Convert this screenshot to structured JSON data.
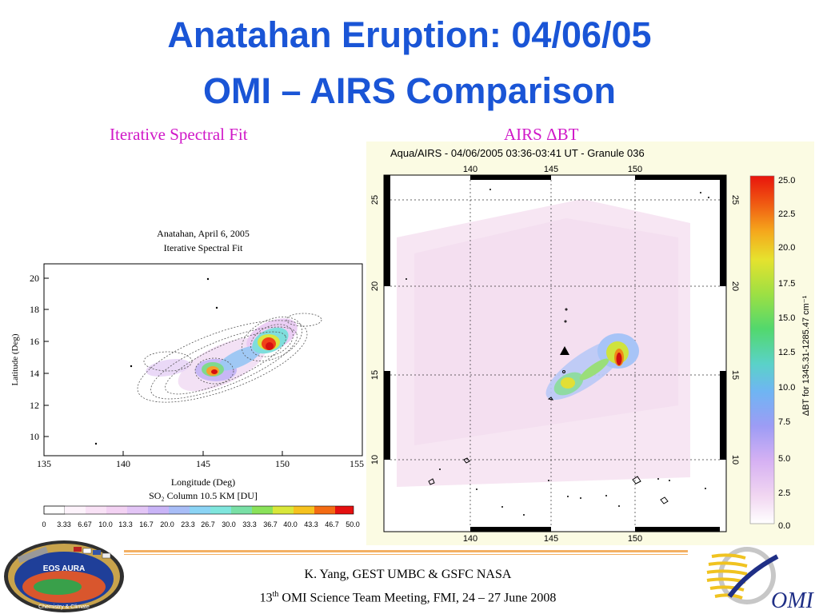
{
  "slide": {
    "title_line1": "Anatahan Eruption: 04/06/05",
    "title_line2": "OMI – AIRS Comparison",
    "left_subtitle": "Iterative Spectral Fit",
    "right_subtitle": "AIRS ΔBT"
  },
  "left_plot": {
    "title_line1": "Anatahan, April 6, 2005",
    "title_line2": "Iterative Spectral Fit",
    "ylabel": "Latitude (Deg)",
    "xlabel": "Longitude (Deg)",
    "colorbar_label": "SO₂ Column 10.5 KM [DU]",
    "x_ticks": [
      "135",
      "140",
      "145",
      "150",
      "155"
    ],
    "y_ticks": [
      "20",
      "18",
      "16",
      "14",
      "12",
      "10"
    ],
    "colorbar_ticks": [
      "0",
      "3.33",
      "6.67",
      "10.0",
      "13.3",
      "16.7",
      "20.0",
      "23.3",
      "26.7",
      "30.0",
      "33.3",
      "36.7",
      "40.0",
      "43.3",
      "46.7",
      "50.0"
    ]
  },
  "right_plot": {
    "header": "Aqua/AIRS - 04/06/2005 03:36-03:41 UT - Granule 036",
    "x_ticks": [
      "140",
      "145",
      "150"
    ],
    "y_ticks": [
      "25",
      "20",
      "15",
      "10"
    ],
    "colorbar_ticks": [
      "25.0",
      "22.5",
      "20.0",
      "17.5",
      "15.0",
      "12.5",
      "10.0",
      "7.5",
      "5.0",
      "2.5",
      "0.0"
    ],
    "colorbar_label": "ΔBT for 1345.31-1285.47 cm⁻¹"
  },
  "logos": {
    "left_badge": "EOS AURA",
    "left_badge_sub": "Chemistry & Climate",
    "right_logo": "OMI"
  },
  "footer": {
    "line1": "K. Yang, GEST UMBC  & GSFC NASA",
    "line2_prefix": "13",
    "line2_sup": "th",
    "line2_rest": " OMI Science Team Meeting, FMI, 24 – 27 June 2008"
  },
  "colors": {
    "title": "#1a55d6",
    "subtitle": "#d018c8",
    "footer_rule": "#f3b063"
  }
}
